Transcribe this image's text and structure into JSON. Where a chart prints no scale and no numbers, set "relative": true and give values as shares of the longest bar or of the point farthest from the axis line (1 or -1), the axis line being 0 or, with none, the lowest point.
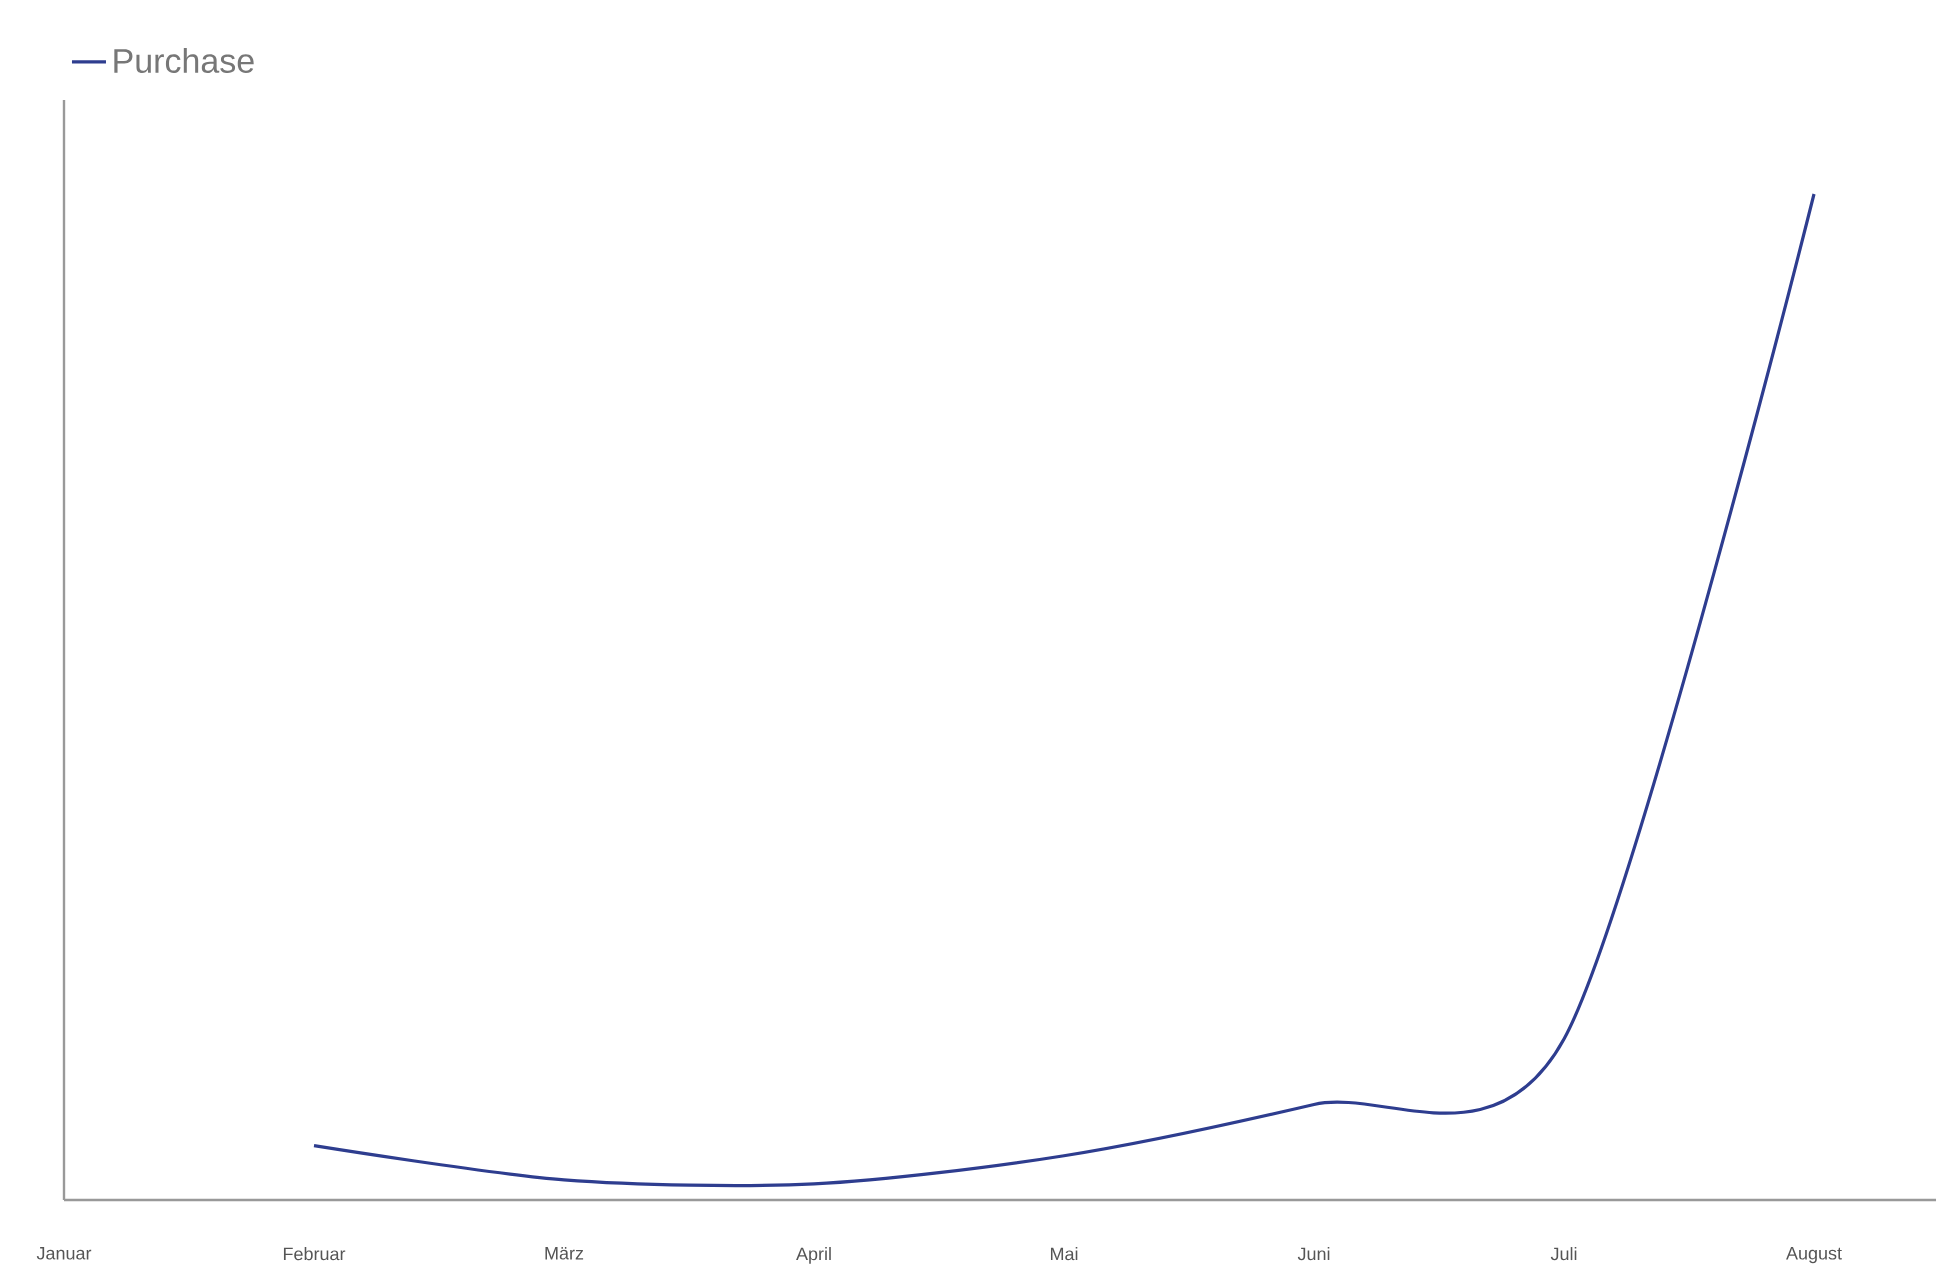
{
  "chart_data": {
    "type": "line",
    "relative": true,
    "categories": [
      "Januar",
      "Februar",
      "März",
      "April",
      "Mai",
      "Juni",
      "Juli",
      "August"
    ],
    "series": [
      {
        "name": "Purchase",
        "color": "#2e3d8f",
        "values": [
          null,
          0.054,
          0.02,
          0.016,
          0.044,
          0.095,
          0.16,
          1.0
        ]
      }
    ],
    "legend": "top left",
    "marker": "none",
    "line_style": "solid"
  }
}
